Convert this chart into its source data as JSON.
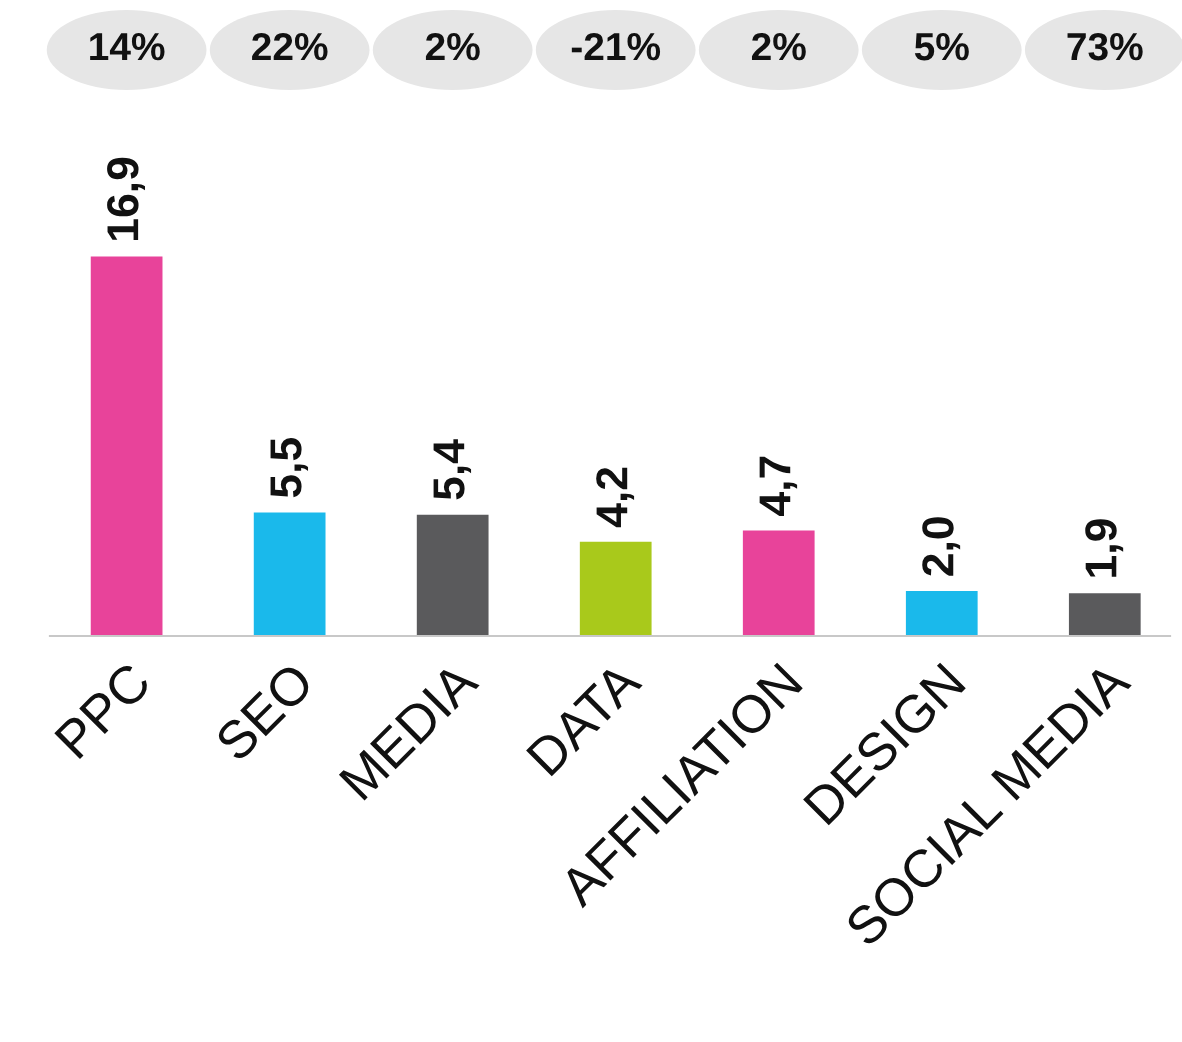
{
  "chart_data": {
    "type": "bar",
    "categories": [
      "PPC",
      "SEO",
      "MEDIA",
      "DATA",
      "AFFILIATION",
      "DESIGN",
      "SOCIAL MEDIA"
    ],
    "values": [
      16.9,
      5.5,
      5.4,
      4.2,
      4.7,
      2.0,
      1.9
    ],
    "colors": [
      "#e8439a",
      "#1ab9eb",
      "#5a5a5c",
      "#a9c91b",
      "#e8439a",
      "#1ab9eb",
      "#5a5a5c"
    ],
    "value_labels": [
      "16,9",
      "5,5",
      "5,4",
      "4,2",
      "4,7",
      "2,0",
      "1,9"
    ],
    "annotations": [
      "14%",
      "22%",
      "2%",
      "-21%",
      "2%",
      "5%",
      "73%"
    ],
    "grid": false,
    "legend": false
  }
}
